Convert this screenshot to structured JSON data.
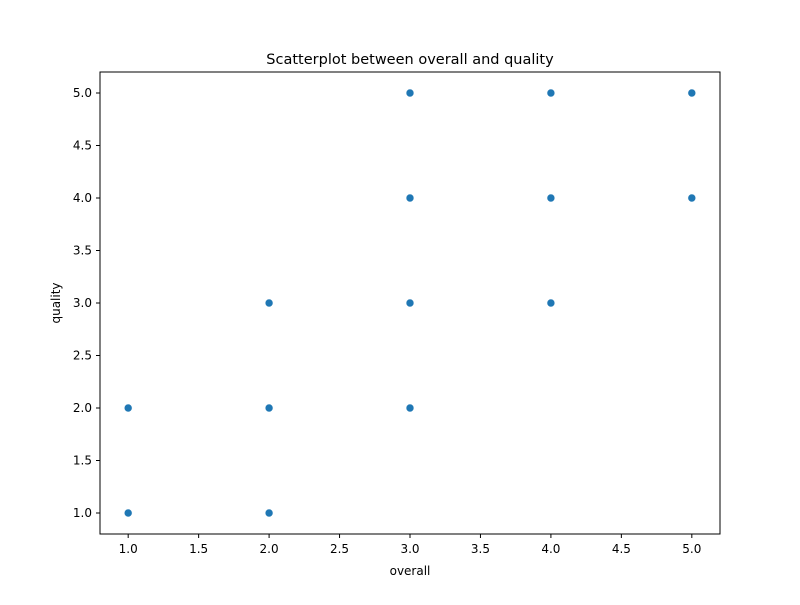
{
  "chart_data": {
    "type": "scatter",
    "title": "Scatterplot between overall and quality",
    "xlabel": "overall",
    "ylabel": "quality",
    "xlim": [
      0.8,
      5.2
    ],
    "ylim": [
      0.8,
      5.2
    ],
    "xticks": [
      1.0,
      1.5,
      2.0,
      2.5,
      3.0,
      3.5,
      4.0,
      4.5,
      5.0
    ],
    "yticks": [
      1.0,
      1.5,
      2.0,
      2.5,
      3.0,
      3.5,
      4.0,
      4.5,
      5.0
    ],
    "xtick_labels": [
      "1.0",
      "1.5",
      "2.0",
      "2.5",
      "3.0",
      "3.5",
      "4.0",
      "4.5",
      "5.0"
    ],
    "ytick_labels": [
      "1.0",
      "1.5",
      "2.0",
      "2.5",
      "3.0",
      "3.5",
      "4.0",
      "4.5",
      "5.0"
    ],
    "grid": false,
    "legend": "none",
    "series": [
      {
        "color": "#1f77b4",
        "points": [
          {
            "x": 1,
            "y": 1
          },
          {
            "x": 1,
            "y": 2
          },
          {
            "x": 2,
            "y": 1
          },
          {
            "x": 2,
            "y": 2
          },
          {
            "x": 2,
            "y": 3
          },
          {
            "x": 3,
            "y": 2
          },
          {
            "x": 3,
            "y": 3
          },
          {
            "x": 3,
            "y": 4
          },
          {
            "x": 3,
            "y": 5
          },
          {
            "x": 4,
            "y": 3
          },
          {
            "x": 4,
            "y": 4
          },
          {
            "x": 4,
            "y": 5
          },
          {
            "x": 5,
            "y": 4
          },
          {
            "x": 5,
            "y": 5
          }
        ]
      }
    ]
  }
}
